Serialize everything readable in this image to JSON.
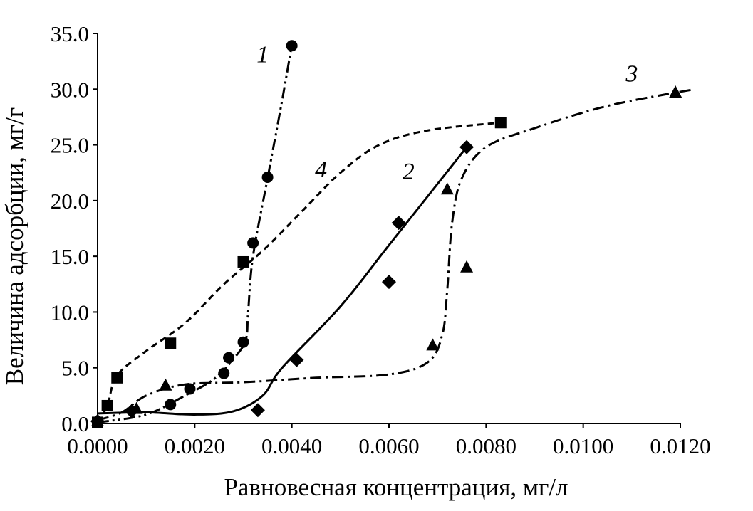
{
  "chart_data": {
    "type": "scatter",
    "title": "",
    "xlabel": "Равновесная концентрация, мг/л",
    "ylabel": "Величина адсорбции, мг/г",
    "xlim": [
      0,
      0.012
    ],
    "ylim": [
      0,
      35
    ],
    "x_ticks": [
      "0.0000",
      "0.0020",
      "0.0040",
      "0.0060",
      "0.0080",
      "0.0100",
      "0.0120"
    ],
    "y_ticks": [
      "0.0",
      "5.0",
      "10.0",
      "15.0",
      "20.0",
      "25.0",
      "30.0",
      "35.0"
    ],
    "grid": false,
    "legend": "none",
    "series": [
      {
        "name": "1",
        "marker": "circle",
        "line_style": "dash-dot-dot",
        "points": [
          [
            0.0,
            0.1
          ],
          [
            0.0015,
            1.7
          ],
          [
            0.0019,
            3.1
          ],
          [
            0.0026,
            4.5
          ],
          [
            0.0027,
            5.9
          ],
          [
            0.003,
            7.3
          ],
          [
            0.0032,
            16.2
          ],
          [
            0.0035,
            22.1
          ],
          [
            0.004,
            33.9
          ]
        ],
        "curve": [
          [
            0.0,
            0.1
          ],
          [
            0.001,
            0.8
          ],
          [
            0.0018,
            2.5
          ],
          [
            0.0024,
            4.0
          ],
          [
            0.0028,
            5.8
          ],
          [
            0.00305,
            7.5
          ],
          [
            0.0031,
            10.0
          ],
          [
            0.0032,
            15.0
          ],
          [
            0.0035,
            22.0
          ],
          [
            0.0038,
            29.0
          ],
          [
            0.004,
            34.0
          ]
        ]
      },
      {
        "name": "2",
        "marker": "diamond",
        "line_style": "solid",
        "points": [
          [
            0.0,
            0.2
          ],
          [
            0.0007,
            1.1
          ],
          [
            0.0033,
            1.2
          ],
          [
            0.0041,
            5.7
          ],
          [
            0.006,
            12.7
          ],
          [
            0.0062,
            18.0
          ],
          [
            0.0076,
            24.8
          ]
        ],
        "curve": [
          [
            0.0,
            0.9
          ],
          [
            0.001,
            1.0
          ],
          [
            0.002,
            0.8
          ],
          [
            0.0028,
            1.1
          ],
          [
            0.0034,
            2.5
          ],
          [
            0.0038,
            5.0
          ],
          [
            0.005,
            10.5
          ],
          [
            0.006,
            16.0
          ],
          [
            0.007,
            21.5
          ],
          [
            0.0076,
            24.8
          ]
        ]
      },
      {
        "name": "3",
        "marker": "triangle",
        "line_style": "dash-dot",
        "points": [
          [
            0.0,
            0.2
          ],
          [
            0.0008,
            1.3
          ],
          [
            0.0014,
            3.4
          ],
          [
            0.0069,
            7.0
          ],
          [
            0.0072,
            21.0
          ],
          [
            0.0076,
            14.0
          ],
          [
            0.0119,
            29.7
          ]
        ],
        "curve": [
          [
            0.0,
            0.3
          ],
          [
            0.0005,
            1.0
          ],
          [
            0.001,
            2.5
          ],
          [
            0.0018,
            3.5
          ],
          [
            0.003,
            3.7
          ],
          [
            0.0045,
            4.1
          ],
          [
            0.006,
            4.4
          ],
          [
            0.0068,
            5.5
          ],
          [
            0.0071,
            8.0
          ],
          [
            0.0072,
            12.0
          ],
          [
            0.0073,
            18.0
          ],
          [
            0.0075,
            22.0
          ],
          [
            0.008,
            24.8
          ],
          [
            0.009,
            26.5
          ],
          [
            0.0105,
            28.5
          ],
          [
            0.0123,
            30.0
          ]
        ]
      },
      {
        "name": "4",
        "marker": "square",
        "line_style": "dashed",
        "points": [
          [
            0.0,
            0.1
          ],
          [
            0.0002,
            1.6
          ],
          [
            0.0004,
            4.1
          ],
          [
            0.0015,
            7.2
          ],
          [
            0.003,
            14.5
          ],
          [
            0.0083,
            27.0
          ]
        ],
        "curve": [
          [
            0.0,
            0.1
          ],
          [
            0.0002,
            1.6
          ],
          [
            0.0004,
            4.3
          ],
          [
            0.001,
            6.5
          ],
          [
            0.0018,
            9.0
          ],
          [
            0.0026,
            12.5
          ],
          [
            0.0034,
            15.5
          ],
          [
            0.0042,
            19.0
          ],
          [
            0.005,
            22.5
          ],
          [
            0.0058,
            25.0
          ],
          [
            0.0068,
            26.3
          ],
          [
            0.0083,
            27.0
          ]
        ]
      }
    ],
    "curve_labels": [
      {
        "text": "1",
        "series": "1"
      },
      {
        "text": "2",
        "series": "2"
      },
      {
        "text": "3",
        "series": "3"
      },
      {
        "text": "4",
        "series": "4"
      }
    ]
  }
}
